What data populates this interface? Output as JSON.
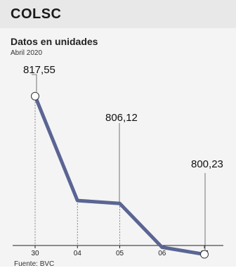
{
  "header": {
    "title": "COLSC",
    "subtitle": "Datos en unidades",
    "period": "Abril 2020",
    "source": "Fuente: BVC"
  },
  "colors": {
    "line": "#5a6594",
    "header_band": "#e8e8e8",
    "panel": "#f4f4f4"
  },
  "chart_data": {
    "type": "line",
    "title": "Datos en unidades",
    "subtitle": "Abril 2020",
    "categories": [
      "30",
      "04",
      "05",
      "06",
      "07"
    ],
    "series": [
      {
        "values": [
          817.55,
          806.12,
          805.8,
          801.0,
          800.23
        ]
      }
    ],
    "labeled_points": [
      {
        "index": 0,
        "label": "817,55",
        "marker": true
      },
      {
        "index": 1,
        "label": "806,12",
        "marker": false
      },
      {
        "index": 4,
        "label": "800,23",
        "marker": true
      }
    ],
    "ylim": [
      797.5,
      826.0
    ],
    "grid": false,
    "xlabel": "",
    "ylabel": ""
  }
}
